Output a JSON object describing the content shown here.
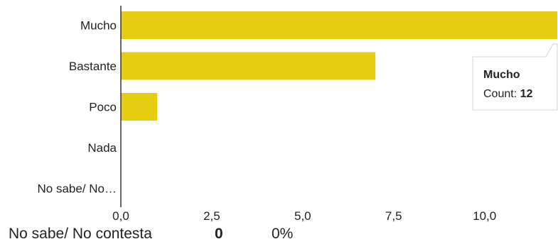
{
  "colors": {
    "bar": "#e6cd11",
    "axis": "#333333",
    "text": "#222222"
  },
  "chart_data": {
    "type": "bar",
    "orientation": "horizontal",
    "categories": [
      "Mucho",
      "Bastante",
      "Poco",
      "Nada",
      "No sabe/ No…"
    ],
    "values": [
      12,
      7,
      1,
      0,
      0
    ],
    "xlim": [
      0,
      12
    ],
    "ticks": [
      0,
      2.5,
      5,
      7.5,
      10
    ],
    "tick_labels": [
      "0,0",
      "2,5",
      "5,0",
      "7,5",
      "10,0"
    ],
    "grid": false,
    "tooltip": {
      "title": "Mucho",
      "count_label": "Count: ",
      "count_value": "12"
    }
  },
  "footer": {
    "label": "No sabe/ No contesta",
    "count": "0",
    "percent": "0%"
  }
}
